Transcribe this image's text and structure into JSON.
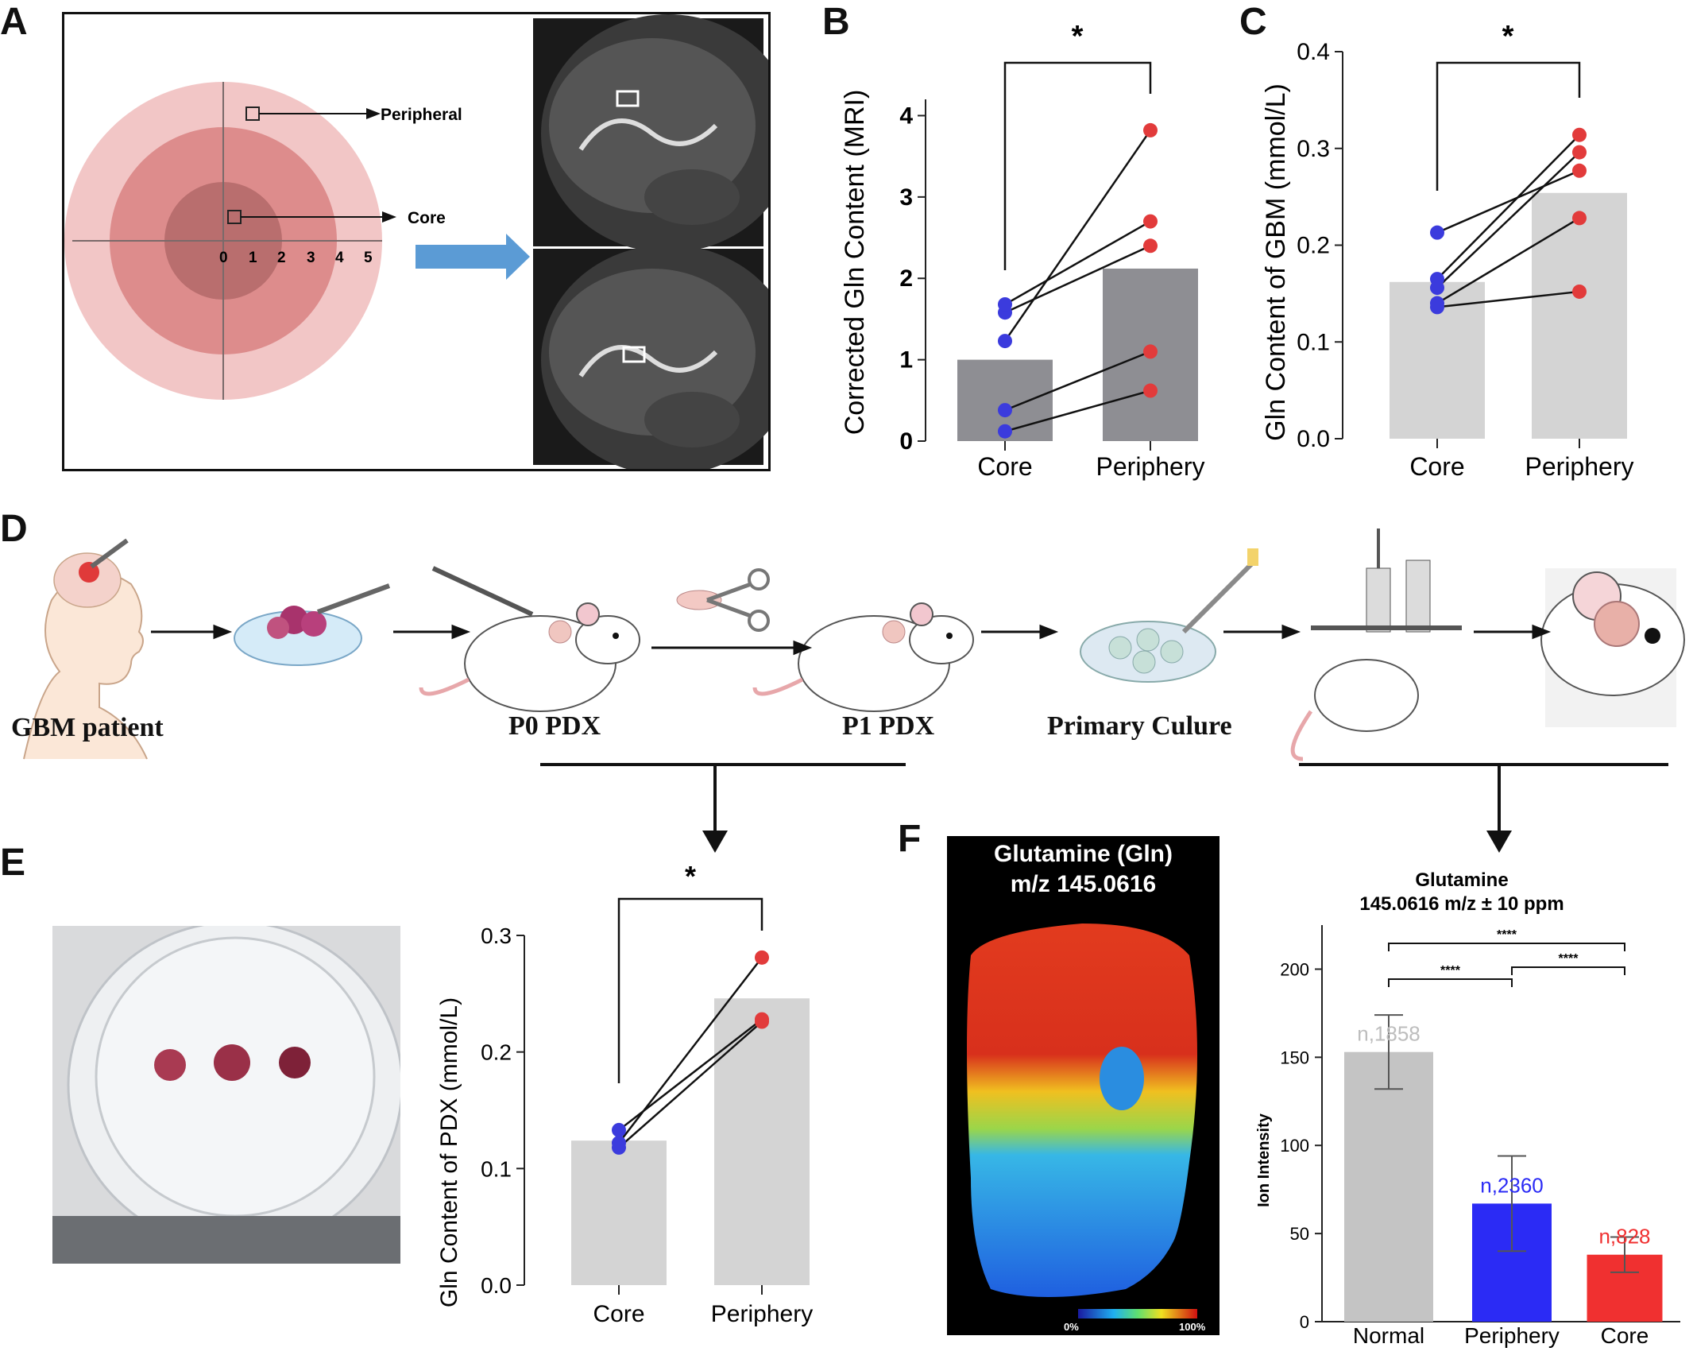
{
  "panels": {
    "A": "A",
    "B": "B",
    "C": "C",
    "D": "D",
    "E": "E",
    "F": "F"
  },
  "panelA": {
    "peripheral_label": "Peripheral",
    "core_label": "Core",
    "scale_ticks": [
      "0",
      "1",
      "2",
      "3",
      "4",
      "5"
    ]
  },
  "panelD": {
    "stages": [
      "GBM patient",
      "P0 PDX",
      "P1 PDX",
      "Primary Culure"
    ]
  },
  "panelF": {
    "image_title_line1": "Glutamine (Gln)",
    "image_title_line2": "m/z 145.0616",
    "colorbar_min": "0%",
    "colorbar_max": "100%"
  },
  "colors": {
    "core_point": "#3b3bdd",
    "periphery_point": "#e23b3b",
    "bar_dark": "#8e8e93",
    "bar_light": "#d4d4d4",
    "normal_bar": "#c4c4c4",
    "periphery_bar": "#2b2bf5",
    "core_bar": "#f03030"
  },
  "chart_data": [
    {
      "id": "B",
      "type": "bar",
      "categories": [
        "Core",
        "Periphery"
      ],
      "values": [
        1.0,
        2.12
      ],
      "ylabel": "Corrected Gln Content (MRI)",
      "yticks": [
        "0",
        "1",
        "2",
        "3",
        "4"
      ],
      "ylim": [
        0,
        4.2
      ],
      "paired_points": [
        [
          0.12,
          0.62
        ],
        [
          0.38,
          1.1
        ],
        [
          1.23,
          3.82
        ],
        [
          1.58,
          2.4
        ],
        [
          1.68,
          2.7
        ]
      ],
      "significance": "*"
    },
    {
      "id": "C",
      "type": "bar",
      "categories": [
        "Core",
        "Periphery"
      ],
      "values": [
        0.162,
        0.254
      ],
      "ylabel": "Gln Content of GBM (mmol/L)",
      "yticks": [
        "0.0",
        "0.1",
        "0.2",
        "0.3",
        "0.4"
      ],
      "ylim": [
        0,
        0.4
      ],
      "paired_points": [
        [
          0.213,
          0.277
        ],
        [
          0.165,
          0.314
        ],
        [
          0.156,
          0.296
        ],
        [
          0.14,
          0.228
        ],
        [
          0.136,
          0.152
        ]
      ],
      "significance": "*"
    },
    {
      "id": "E",
      "type": "bar",
      "categories": [
        "Core",
        "Periphery"
      ],
      "values": [
        0.124,
        0.246
      ],
      "ylabel": "Gln Content of PDX (mmol/L)",
      "yticks": [
        "0.0",
        "0.1",
        "0.2",
        "0.3"
      ],
      "ylim": [
        0,
        0.3
      ],
      "paired_points": [
        [
          0.133,
          0.228
        ],
        [
          0.122,
          0.281
        ],
        [
          0.118,
          0.226
        ]
      ],
      "significance": "*"
    },
    {
      "id": "F",
      "type": "bar",
      "title_line1": "Glutamine",
      "title_line2": "145.0616 m/z ± 10 ppm",
      "categories": [
        "Normal",
        "Periphery",
        "Core"
      ],
      "values": [
        153,
        67,
        38
      ],
      "errors": [
        21,
        27,
        10
      ],
      "n_labels": [
        "n,1858",
        "n,2360",
        "n,828"
      ],
      "ylabel": "Ion Intensity",
      "yticks": [
        "0",
        "50",
        "100",
        "150",
        "200"
      ],
      "ylim": [
        0,
        225
      ],
      "significance": [
        "****",
        "****",
        "****"
      ]
    }
  ]
}
